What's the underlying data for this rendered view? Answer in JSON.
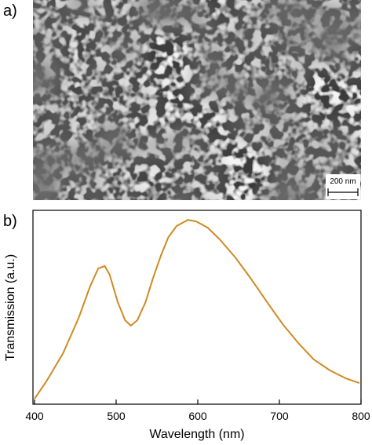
{
  "figure": {
    "panel_a_label": "a)",
    "panel_b_label": "b)",
    "scale_bar": "200 nm"
  },
  "chart_data": {
    "type": "line",
    "x_label": "Wavelength (nm)",
    "y_label": "Transmission (a.u.)",
    "x": [
      400,
      415,
      435,
      454,
      468,
      478,
      486,
      492,
      502,
      511,
      518,
      526,
      536,
      545,
      555,
      564,
      574,
      588,
      598,
      612,
      627,
      646,
      665,
      685,
      704,
      723,
      742,
      762,
      781,
      798
    ],
    "series": [
      {
        "name": "Transmission",
        "color": "#d08a22",
        "values": [
          0.028,
          0.121,
          0.263,
          0.445,
          0.607,
          0.7,
          0.713,
          0.668,
          0.526,
          0.433,
          0.405,
          0.433,
          0.526,
          0.648,
          0.769,
          0.862,
          0.919,
          0.951,
          0.943,
          0.911,
          0.85,
          0.757,
          0.648,
          0.526,
          0.413,
          0.316,
          0.231,
          0.174,
          0.134,
          0.109
        ]
      }
    ],
    "xlim": [
      400,
      800
    ],
    "xticks": [
      400,
      500,
      600,
      700,
      800
    ],
    "ylim": [
      0,
      1
    ]
  }
}
